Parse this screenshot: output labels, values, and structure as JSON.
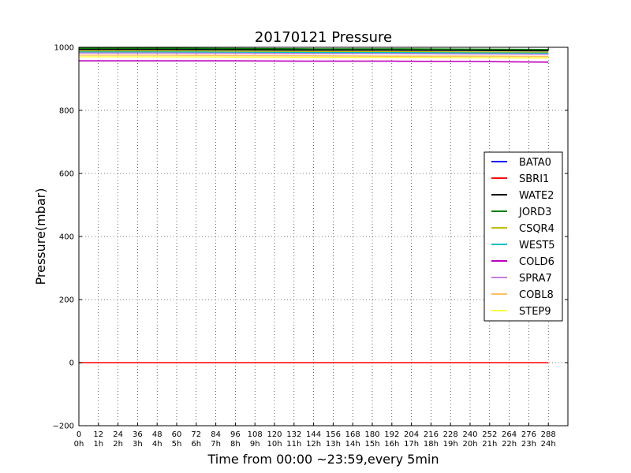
{
  "chart_data": {
    "type": "line",
    "title": "20170121 Pressure",
    "xlabel": "Time from 00:00 ~23:59,every 5min",
    "ylabel": "Pressure(mbar)",
    "xlim": [
      0,
      300
    ],
    "ylim": [
      -200,
      1000
    ],
    "grid": true,
    "legend_position": "center-right",
    "x_ticks": [
      0,
      12,
      24,
      36,
      48,
      60,
      72,
      84,
      96,
      108,
      120,
      132,
      144,
      156,
      168,
      180,
      192,
      204,
      216,
      228,
      240,
      252,
      264,
      276,
      288
    ],
    "x_tick_labels": [
      "0",
      "12",
      "24",
      "36",
      "48",
      "60",
      "72",
      "84",
      "96",
      "108",
      "120",
      "132",
      "144",
      "156",
      "168",
      "180",
      "192",
      "204",
      "216",
      "228",
      "240",
      "252",
      "264",
      "276",
      "288"
    ],
    "x_tick_sublabels": [
      "0h",
      "1h",
      "2h",
      "3h",
      "4h",
      "5h",
      "6h",
      "7h",
      "8h",
      "9h",
      "10h",
      "11h",
      "12h",
      "13h",
      "14h",
      "15h",
      "16h",
      "17h",
      "18h",
      "19h",
      "20h",
      "21h",
      "22h",
      "23h",
      "24h"
    ],
    "y_ticks": [
      -200,
      0,
      200,
      400,
      600,
      800,
      1000
    ],
    "y_tick_labels": [
      "−200",
      "0",
      "200",
      "400",
      "600",
      "800",
      "1000"
    ],
    "x": [
      0,
      48,
      96,
      144,
      192,
      240,
      288
    ],
    "series": [
      {
        "name": "BATA0",
        "color": "#0000ff",
        "values": [
          995,
          995,
          994,
          993,
          992,
          992,
          991
        ]
      },
      {
        "name": "SBRI1",
        "color": "#ff0000",
        "values": [
          0,
          0,
          0,
          0,
          0,
          0,
          0
        ]
      },
      {
        "name": "WATE2",
        "color": "#000000",
        "values": [
          993,
          993,
          992,
          991,
          991,
          990,
          989
        ]
      },
      {
        "name": "JORD3",
        "color": "#008000",
        "values": [
          997,
          997,
          996,
          995,
          995,
          994,
          993
        ]
      },
      {
        "name": "CSQR4",
        "color": "#bfbf00",
        "values": [
          988,
          988,
          987,
          986,
          986,
          985,
          984
        ]
      },
      {
        "name": "WEST5",
        "color": "#00bfbf",
        "values": [
          985,
          985,
          984,
          983,
          983,
          982,
          981
        ]
      },
      {
        "name": "COLD6",
        "color": "#bf00bf",
        "values": [
          957,
          957,
          957,
          956,
          956,
          955,
          953
        ]
      },
      {
        "name": "SPRA7",
        "color": "#c080e0",
        "values": [
          982,
          982,
          981,
          980,
          980,
          979,
          978
        ]
      },
      {
        "name": "COBL8",
        "color": "#ffc060",
        "values": [
          975,
          975,
          974,
          973,
          972,
          972,
          971
        ]
      },
      {
        "name": "STEP9",
        "color": "#ffff40",
        "values": [
          970,
          970,
          969,
          968,
          968,
          967,
          966
        ]
      }
    ]
  }
}
